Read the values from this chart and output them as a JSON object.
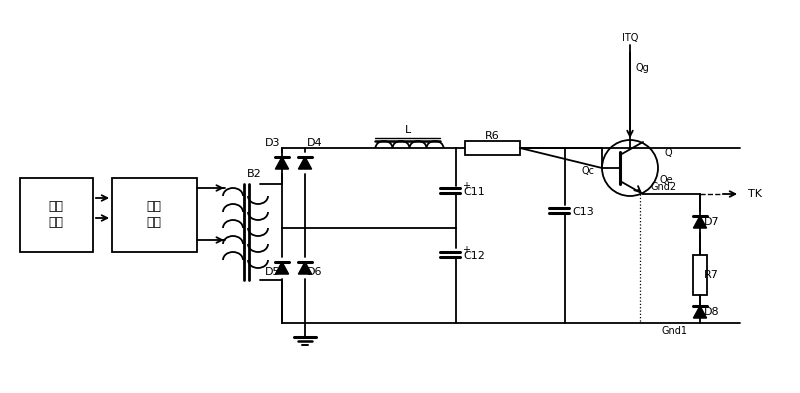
{
  "bg_color": "#ffffff",
  "lc": "#000000",
  "figsize": [
    8.0,
    3.93
  ],
  "dpi": 100,
  "lw": 1.3,
  "labels": {
    "box1_l1": "电源",
    "box1_l2": "系统",
    "box2_l1": "脚踩",
    "box2_l2": "开关",
    "B2": "B2",
    "L": "L",
    "R6": "R6",
    "D3": "D3",
    "D4": "D4",
    "D5": "D5",
    "D6": "D6",
    "C11": "C11",
    "C12": "C12",
    "C13": "C13",
    "Q": "Q",
    "Qg": "Qg",
    "Qc": "Qc",
    "Qe": "Qe",
    "ITQ": "ITQ",
    "R7": "R7",
    "D7": "D7",
    "D8": "D8",
    "Gnd1": "Gnd1",
    "Gnd2": "Gnd2",
    "TK": "TK"
  }
}
